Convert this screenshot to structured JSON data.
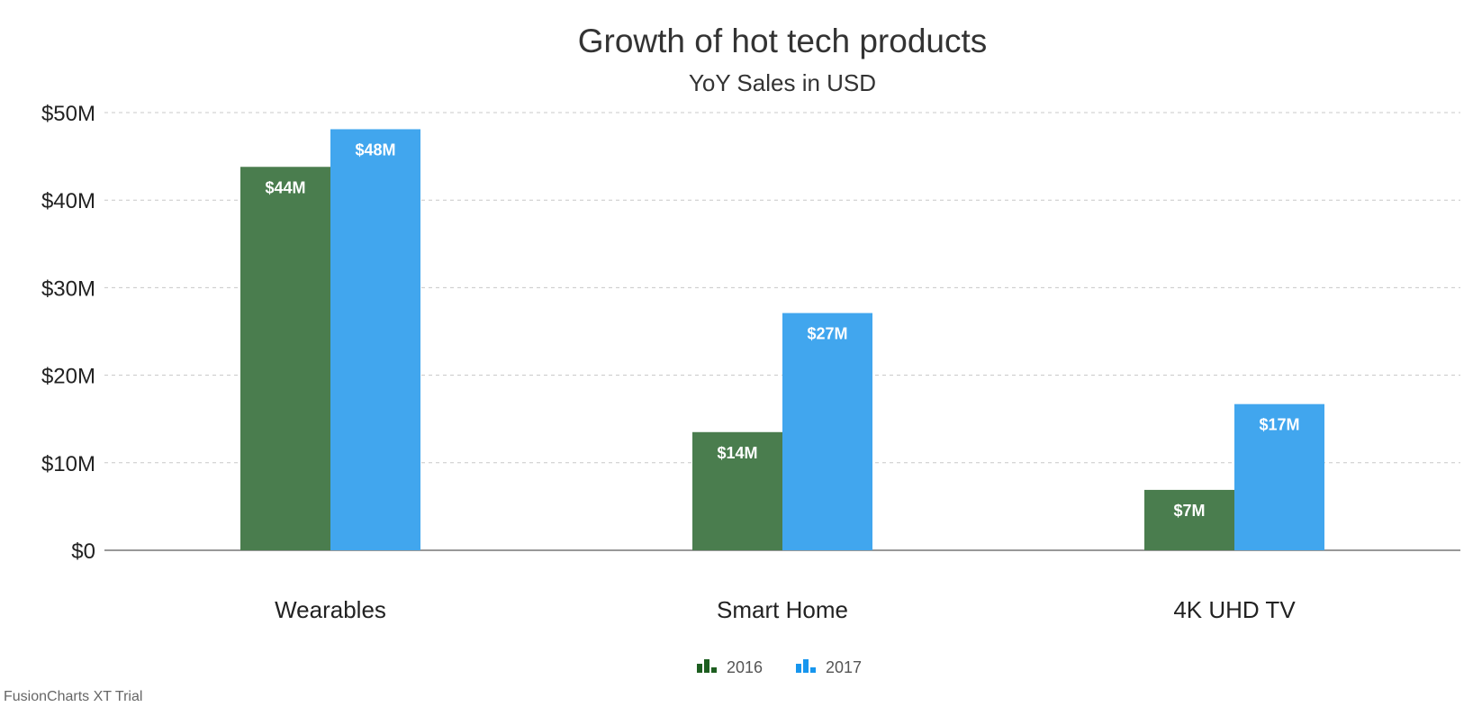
{
  "chart_data": {
    "type": "bar",
    "title": "Growth of hot tech products",
    "subtitle": "YoY Sales in USD",
    "xlabel": "",
    "ylabel": "",
    "categories": [
      "Wearables",
      "Smart Home",
      "4K UHD TV"
    ],
    "ylim": [
      0,
      50
    ],
    "y_ticks": [
      0,
      10,
      20,
      30,
      40,
      50
    ],
    "y_tick_labels": [
      "$0",
      "$10M",
      "$20M",
      "$30M",
      "$40M",
      "$50M"
    ],
    "grid": true,
    "legend_position": "bottom",
    "series": [
      {
        "name": "2016",
        "color": "#4a7d4e",
        "legend_color": "#1d5e20",
        "values": [
          43.8,
          13.5,
          6.9
        ],
        "labels": [
          "$44M",
          "$14M",
          "$7M"
        ]
      },
      {
        "name": "2017",
        "color": "#41a6ee",
        "legend_color": "#1796ee",
        "values": [
          48.1,
          27.1,
          16.7
        ],
        "labels": [
          "$48M",
          "$27M",
          "$17M"
        ]
      }
    ]
  },
  "watermark": "FusionCharts XT Trial"
}
